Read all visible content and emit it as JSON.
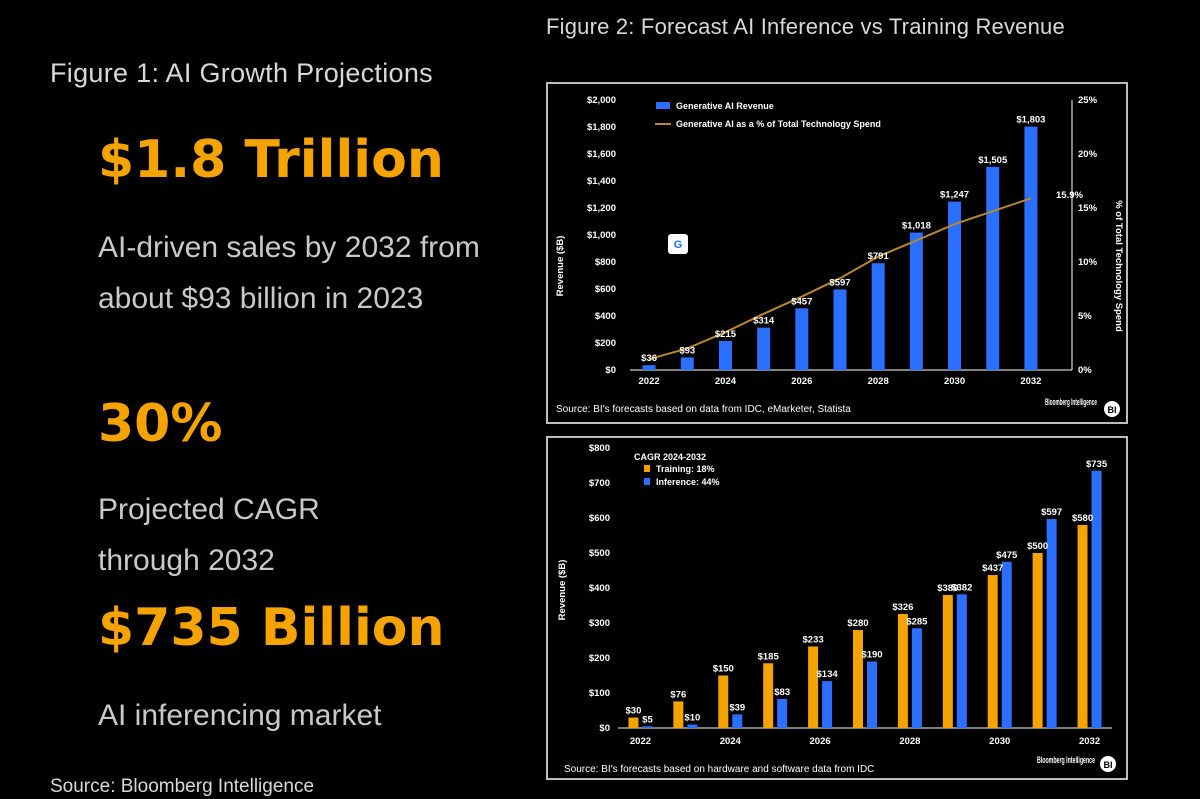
{
  "left": {
    "figure_title": "Figure 1: AI Growth Projections",
    "stats": [
      {
        "value": "$1.8 Trillion",
        "description": "AI-driven sales by 2032 from about $93 billion in 2023"
      },
      {
        "value": "30%",
        "description": "Projected CAGR through 2032"
      },
      {
        "value": "$735 Billion",
        "description": "AI inferencing market"
      }
    ],
    "source": "Source: Bloomberg Intelligence"
  },
  "right_title": "Figure 2: Forecast AI Inference vs Training Revenue",
  "colors": {
    "accent": "#f5a300",
    "bar_blue": "#2a6fff",
    "line_gold": "#b8862c",
    "train_orange": "#f5a300"
  },
  "chart_data": [
    {
      "type": "bar",
      "categories": [
        "2022",
        "2023",
        "2024",
        "2025",
        "2026",
        "2027",
        "2028",
        "2029",
        "2030",
        "2031",
        "2032"
      ],
      "x_tick_labels": [
        "2022",
        "2024",
        "2026",
        "2028",
        "2030",
        "2032"
      ],
      "series": [
        {
          "name": "Generative AI Revenue",
          "type": "bar",
          "axis": "left",
          "values": [
            36,
            93,
            215,
            314,
            457,
            597,
            791,
            1018,
            1247,
            1505,
            1803
          ],
          "labels": [
            "$36",
            "$93",
            "$215",
            "$314",
            "$457",
            "$597",
            "$791",
            "$1,018",
            "$1,247",
            "$1,505",
            "$1,803"
          ]
        },
        {
          "name": "Generative AI as a % of Total Technology Spend",
          "type": "line",
          "axis": "right",
          "values": [
            1,
            2,
            3.5,
            5.2,
            6.8,
            8.5,
            10.5,
            12,
            13.5,
            14.7,
            15.9
          ],
          "end_label": "15.9%"
        }
      ],
      "ylabel": "Revenue ($B)",
      "ylim": [
        0,
        2000
      ],
      "y_ticks": [
        "$0",
        "$200",
        "$400",
        "$600",
        "$800",
        "$1,000",
        "$1,200",
        "$1,400",
        "$1,600",
        "$1,800",
        "$2,000"
      ],
      "y2label": "% of Total Technology Spend",
      "y2lim": [
        0,
        25
      ],
      "y2_ticks": [
        "0%",
        "5%",
        "10%",
        "15%",
        "20%",
        "25%"
      ],
      "legend_position": "top-left",
      "source": "Source: BI's forecasts based on data from IDC, eMarketer, Statista",
      "logo": "Bloomberg Intelligence"
    },
    {
      "type": "bar",
      "categories": [
        "2022",
        "2023",
        "2024",
        "2025",
        "2026",
        "2027",
        "2028",
        "2029",
        "2030",
        "2031",
        "2032"
      ],
      "x_tick_labels": [
        "2022",
        "2024",
        "2026",
        "2028",
        "2030",
        "2032"
      ],
      "legend_title": "CAGR 2024-2032",
      "series": [
        {
          "name": "Training: 18%",
          "values": [
            30,
            76,
            150,
            185,
            233,
            280,
            326,
            380,
            437,
            500,
            580
          ],
          "labels": [
            "$30",
            "$76",
            "$150",
            "$185",
            "$233",
            "$280",
            "$326",
            "$380",
            "$437",
            "$500",
            "$580"
          ]
        },
        {
          "name": "Inference: 44%",
          "values": [
            5,
            10,
            39,
            83,
            134,
            190,
            285,
            382,
            475,
            597,
            735
          ],
          "labels": [
            "$5",
            "$10",
            "$39",
            "$83",
            "$134",
            "$190",
            "$285",
            "$382",
            "$475",
            "$597",
            "$735"
          ]
        }
      ],
      "ylabel": "Revenue ($B)",
      "ylim": [
        0,
        800
      ],
      "y_ticks": [
        "$0",
        "$100",
        "$200",
        "$300",
        "$400",
        "$500",
        "$600",
        "$700",
        "$800"
      ],
      "legend_position": "top-left",
      "source": "Source: BI's forecasts based on hardware and software data from IDC",
      "logo": "Bloomberg Intelligence"
    }
  ]
}
